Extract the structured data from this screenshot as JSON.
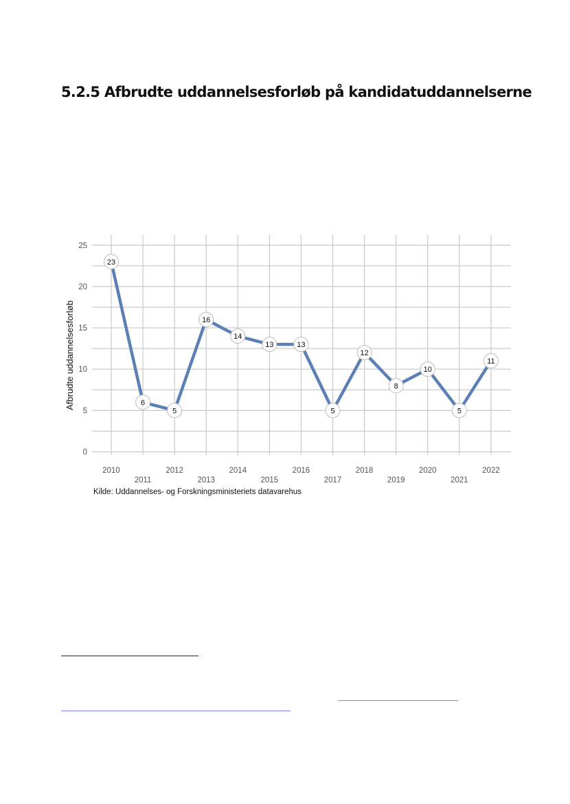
{
  "heading": "5.2.5 Afbrudte uddannelsesforløb på kandidatuddannelserne",
  "source": "Kilde: Uddannelses- og Forskningsministeriets datavarehus",
  "colors": {
    "line": "#5b80b5",
    "grid": "#c8c8c8",
    "marker_fill": "#ffffff",
    "marker_stroke": "#bdbdbd",
    "link": "#7f86e6"
  },
  "chart_data": {
    "type": "line",
    "x": [
      "2010",
      "2011",
      "2012",
      "2013",
      "2014",
      "2015",
      "2016",
      "2017",
      "2018",
      "2019",
      "2020",
      "2021",
      "2022"
    ],
    "series": [
      {
        "values": [
          23,
          6,
          5,
          16,
          14,
          13,
          13,
          5,
          12,
          8,
          10,
          5,
          11
        ]
      }
    ],
    "title": "",
    "xlabel": "",
    "ylabel": "Afbrudte uddannelsesforløb",
    "ylim": [
      0,
      25
    ],
    "yticks": [
      0,
      5,
      10,
      15,
      20,
      25
    ],
    "x_tick_labels": "staggered (even years top row, odd years lower row)",
    "grid": true,
    "legend": "none",
    "data_labels": "circle markers with value"
  }
}
